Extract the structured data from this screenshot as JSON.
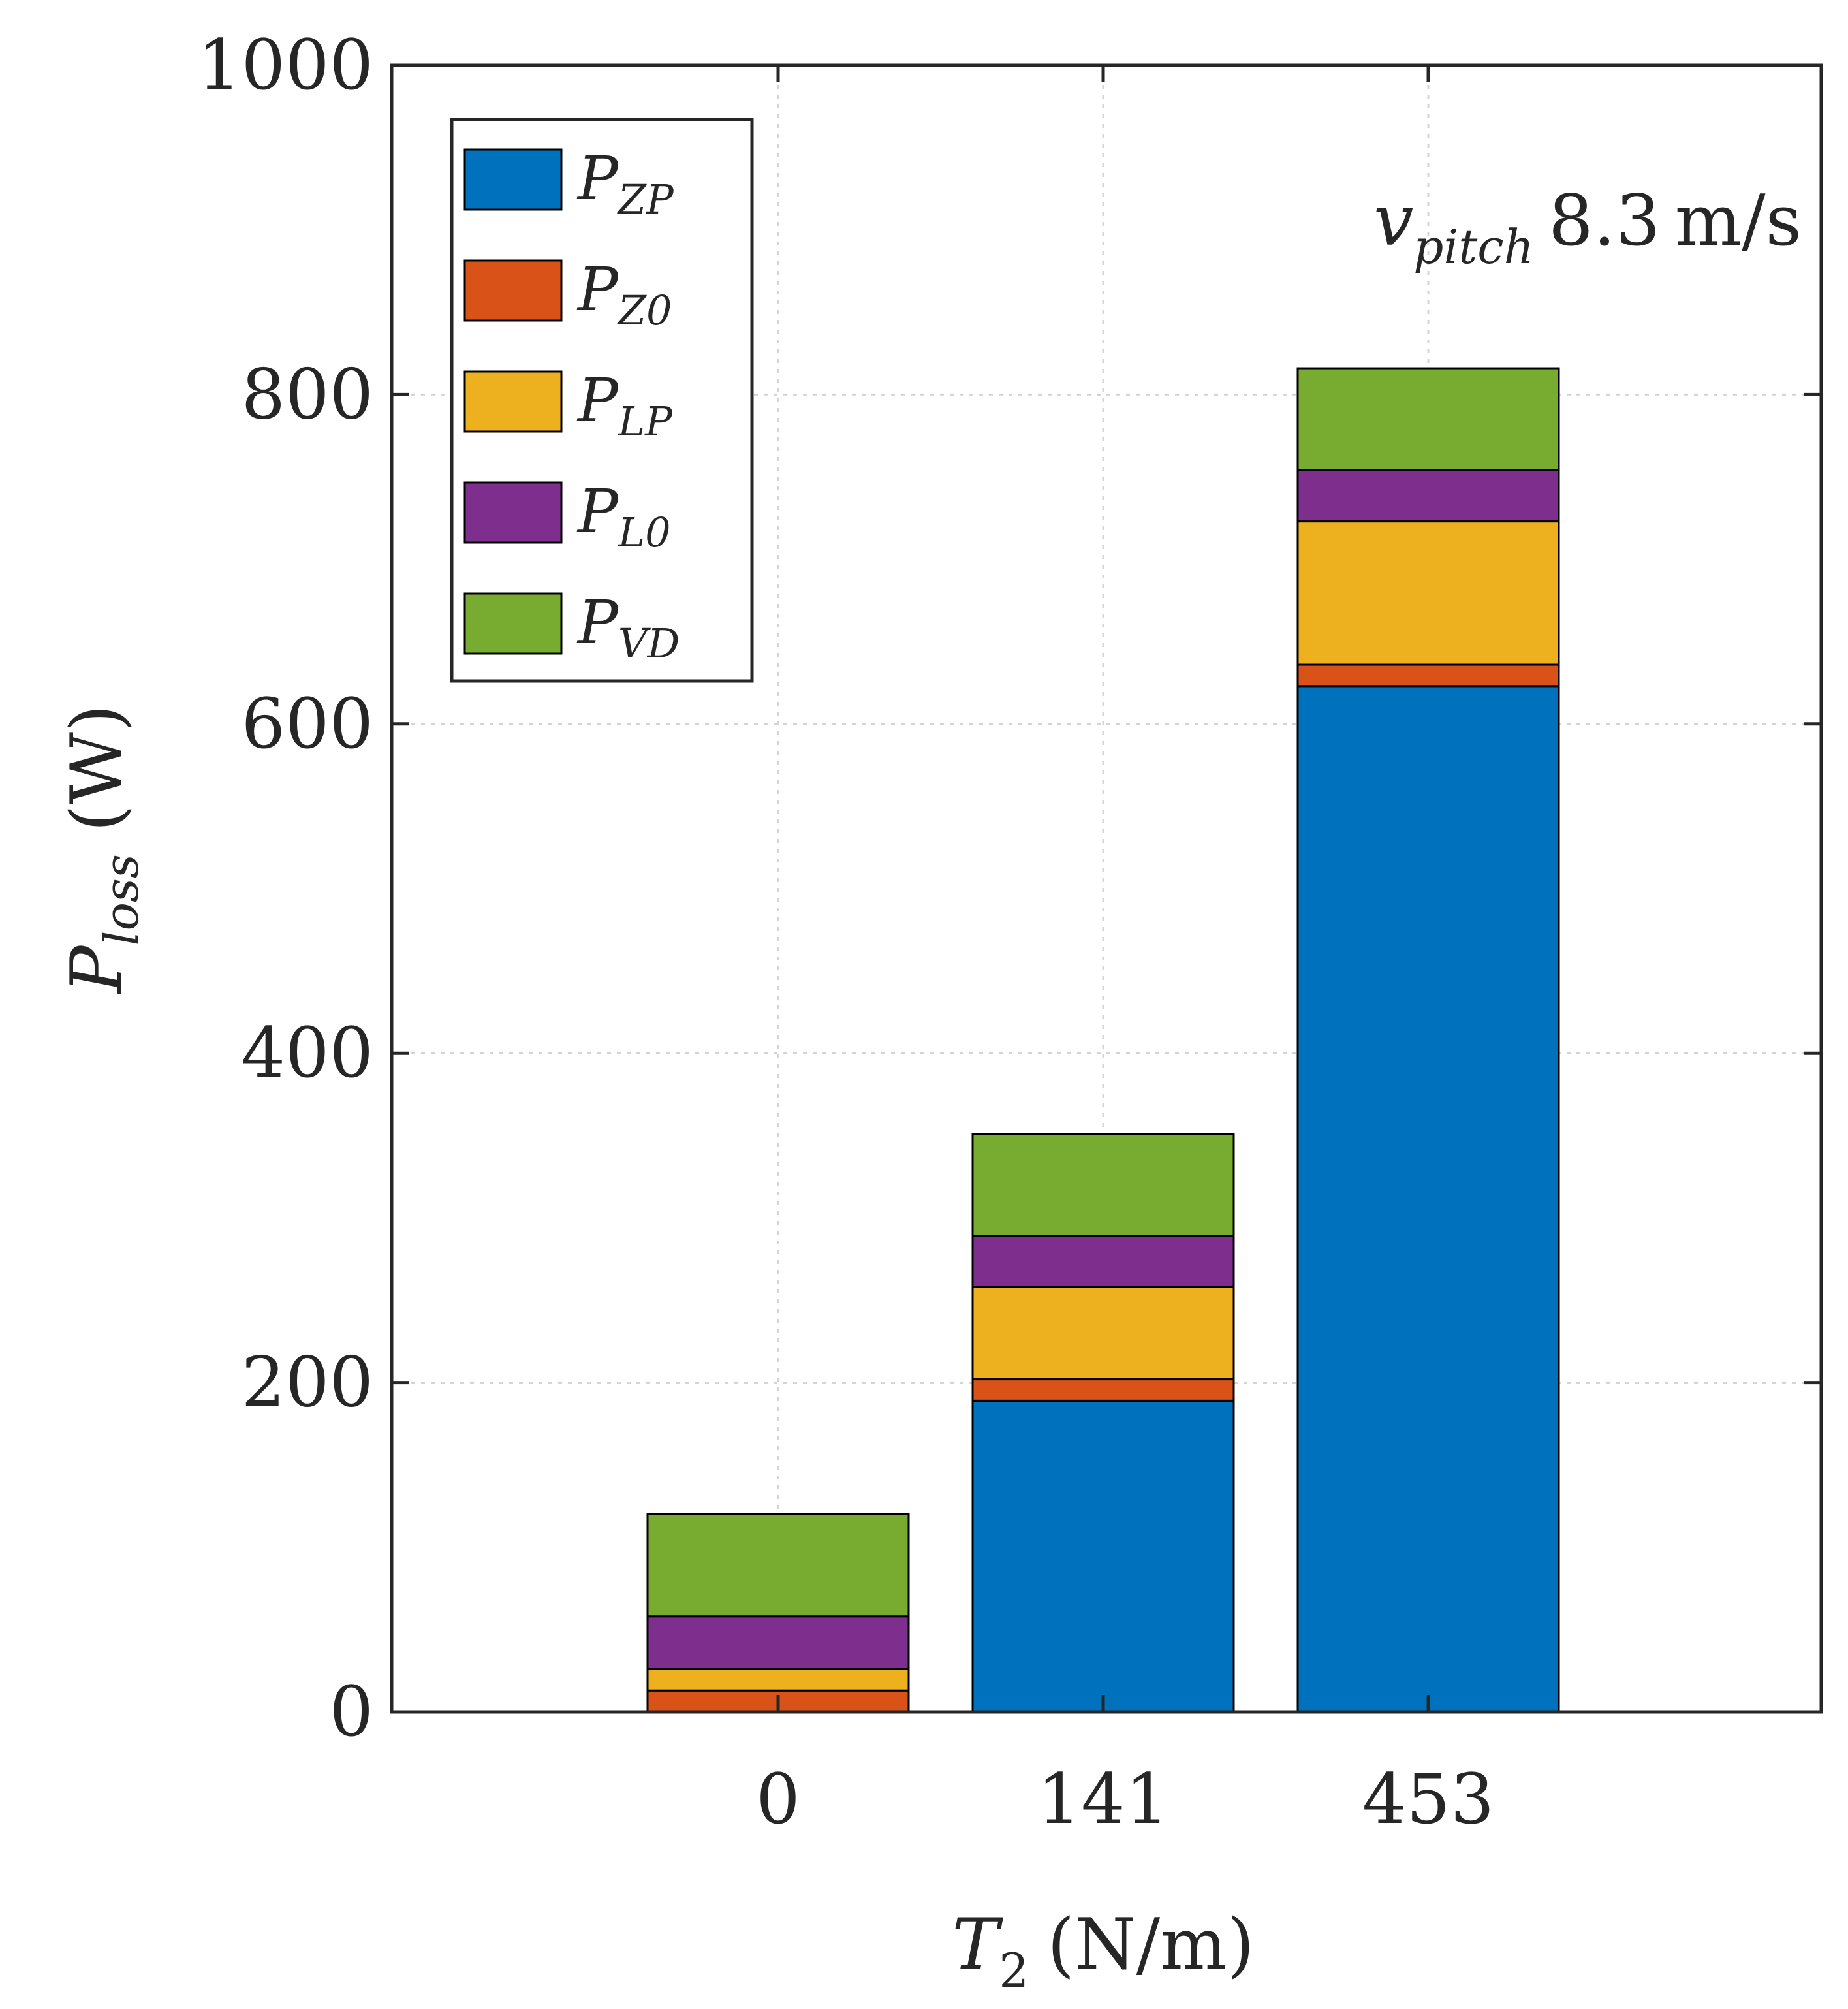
{
  "chart_data": {
    "type": "bar",
    "stacked": true,
    "categories": [
      "0",
      "141",
      "453"
    ],
    "series": [
      {
        "name": "P_ZP",
        "main": "P",
        "sub": "ZP",
        "color": "#0072BD",
        "values": [
          0,
          189,
          623
        ]
      },
      {
        "name": "P_Z0",
        "main": "P",
        "sub": "Z0",
        "color": "#D95319",
        "values": [
          13,
          13,
          13
        ]
      },
      {
        "name": "P_LP",
        "main": "P",
        "sub": "LP",
        "color": "#EDB120",
        "values": [
          13,
          56,
          87
        ]
      },
      {
        "name": "P_L0",
        "main": "P",
        "sub": "L0",
        "color": "#7E2F8E",
        "values": [
          32,
          31,
          31
        ]
      },
      {
        "name": "P_VD",
        "main": "P",
        "sub": "VD",
        "color": "#77AC30",
        "values": [
          62,
          62,
          62
        ]
      }
    ],
    "title": "",
    "xlabel": {
      "main": "T",
      "sub": "2",
      "unit": "(N/m)"
    },
    "ylabel": {
      "main": "P",
      "sub": "loss",
      "unit": "(W)"
    },
    "ylim": [
      0,
      1000
    ],
    "yticks": [
      "0",
      "200",
      "400",
      "600",
      "800",
      "1000"
    ],
    "ytick_values": [
      0,
      200,
      400,
      600,
      800,
      1000
    ],
    "grid": true,
    "legend": "top-left",
    "annotation": {
      "main": "v",
      "sub": "pitch",
      "value": "8.3",
      "unit": "m/s",
      "placement": "top-right"
    }
  }
}
